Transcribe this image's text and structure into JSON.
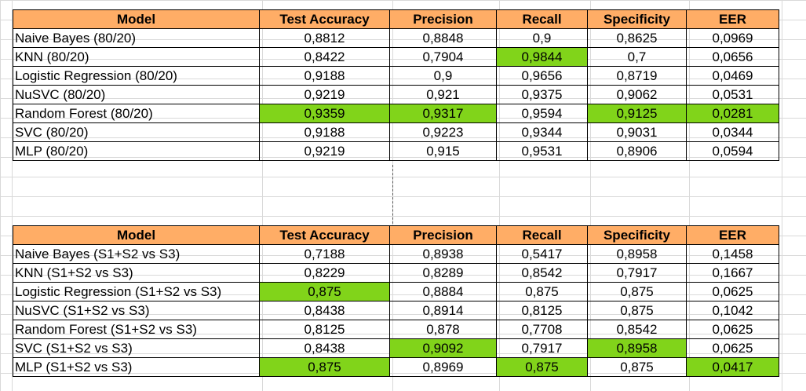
{
  "colors": {
    "header_bg": "#ffad66",
    "highlight": "#81d41a",
    "grid": "#d9d9d9"
  },
  "tables": [
    {
      "headers": [
        "Model",
        "Test Accuracy",
        "Precision",
        "Recall",
        "Specificity",
        "EER"
      ],
      "rows": [
        {
          "cells": [
            "Naive Bayes (80/20)",
            "0,8812",
            "0,8848",
            "0,9",
            "0,8625",
            "0,0969"
          ],
          "highlight": []
        },
        {
          "cells": [
            "KNN (80/20)",
            "0,8422",
            "0,7904",
            "0,9844",
            "0,7",
            "0,0656"
          ],
          "highlight": [
            3
          ]
        },
        {
          "cells": [
            "Logistic Regression (80/20)",
            "0,9188",
            "0,9",
            "0,9656",
            "0,8719",
            "0,0469"
          ],
          "highlight": []
        },
        {
          "cells": [
            "NuSVC (80/20)",
            "0,9219",
            "0,921",
            "0,9375",
            "0,9062",
            "0,0531"
          ],
          "highlight": []
        },
        {
          "cells": [
            "Random Forest (80/20)",
            "0,9359",
            "0,9317",
            "0,9594",
            "0,9125",
            "0,0281"
          ],
          "highlight": [
            1,
            2,
            4,
            5
          ]
        },
        {
          "cells": [
            "SVC (80/20)",
            "0,9188",
            "0,9223",
            "0,9344",
            "0,9031",
            "0,0344"
          ],
          "highlight": []
        },
        {
          "cells": [
            "MLP (80/20)",
            "0,9219",
            "0,915",
            "0,9531",
            "0,8906",
            "0,0594"
          ],
          "highlight": []
        }
      ]
    },
    {
      "headers": [
        "Model",
        "Test Accuracy",
        "Precision",
        "Recall",
        "Specificity",
        "EER"
      ],
      "rows": [
        {
          "cells": [
            "Naive Bayes (S1+S2 vs S3)",
            "0,7188",
            "0,8938",
            "0,5417",
            "0,8958",
            "0,1458"
          ],
          "highlight": []
        },
        {
          "cells": [
            "KNN (S1+S2 vs S3)",
            "0,8229",
            "0,8289",
            "0,8542",
            "0,7917",
            "0,1667"
          ],
          "highlight": []
        },
        {
          "cells": [
            "Logistic Regression (S1+S2 vs S3)",
            "0,875",
            "0,8884",
            "0,875",
            "0,875",
            "0,0625"
          ],
          "highlight": [
            1
          ]
        },
        {
          "cells": [
            "NuSVC (S1+S2 vs S3)",
            "0,8438",
            "0,8914",
            "0,8125",
            "0,875",
            "0,1042"
          ],
          "highlight": []
        },
        {
          "cells": [
            "Random Forest (S1+S2 vs S3)",
            "0,8125",
            "0,878",
            "0,7708",
            "0,8542",
            "0,0625"
          ],
          "highlight": []
        },
        {
          "cells": [
            "SVC (S1+S2 vs S3)",
            "0,8438",
            "0,9092",
            "0,7917",
            "0,8958",
            "0,0625"
          ],
          "highlight": [
            2,
            4
          ]
        },
        {
          "cells": [
            "MLP (S1+S2 vs S3)",
            "0,875",
            "0,8969",
            "0,875",
            "0,875",
            "0,0417"
          ],
          "highlight": [
            1,
            3,
            5
          ]
        }
      ]
    }
  ]
}
